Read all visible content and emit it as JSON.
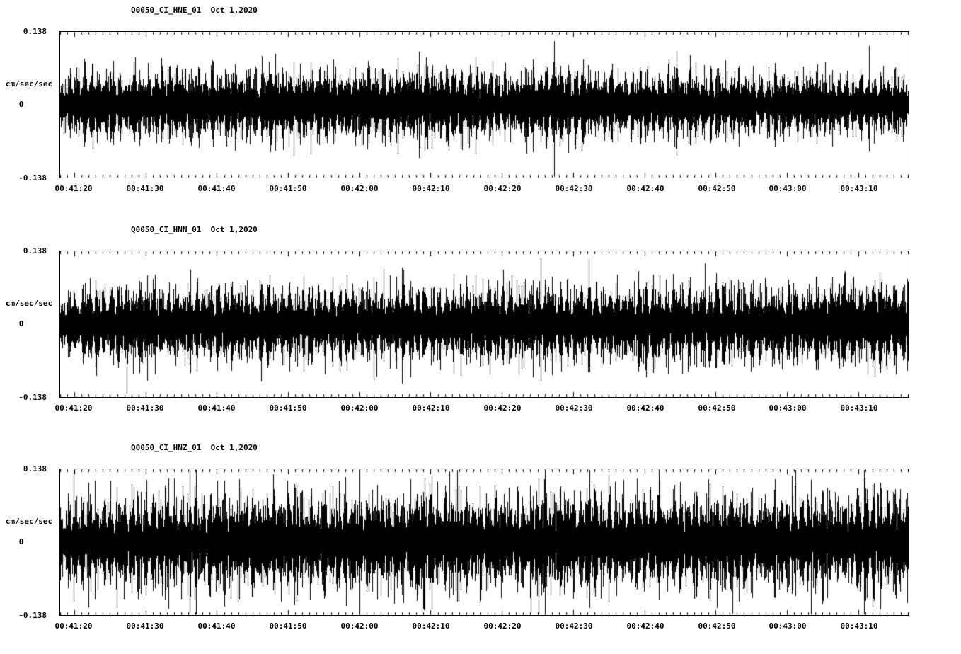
{
  "colors": {
    "background": "#ffffff",
    "trace": "#000000",
    "axis": "#000000"
  },
  "chart_data": [
    {
      "type": "line",
      "kind": "seismic-waveform",
      "title": "Q0050_CI_HNE_01  Oct 1,2020",
      "station": "Q0050",
      "channel": "CI_HNE_01",
      "date": "Oct 1,2020",
      "ylabel": "cm/sec/sec",
      "ylim": [
        -0.138,
        0.138
      ],
      "yticks": [
        {
          "value": 0.138,
          "label": "0.138"
        },
        {
          "value": 0,
          "label": "0"
        },
        {
          "value": -0.138,
          "label": "-0.138"
        }
      ],
      "x_start": "00:41:18",
      "x_end": "00:43:17",
      "x_major_ticks": [
        "00:41:20",
        "00:41:30",
        "00:41:40",
        "00:41:50",
        "00:42:00",
        "00:42:10",
        "00:42:20",
        "00:42:30",
        "00:42:40",
        "00:42:50",
        "00:43:00",
        "00:43:10"
      ],
      "x_minor_tick_sec": 1,
      "x_major_tick_sec": 10,
      "grid": false,
      "legend": false,
      "envelope": [
        0.048,
        0.062,
        0.06,
        0.063,
        0.058,
        0.06,
        0.064,
        0.061,
        0.058,
        0.062,
        0.066,
        0.06,
        0.057,
        0.06,
        0.062,
        0.058,
        0.055,
        0.058,
        0.06,
        0.056,
        0.052,
        0.055,
        0.053,
        0.05,
        0.055
      ],
      "stripe_frequency_hz": 1.0,
      "spike_probability": 0.012,
      "spike_scale": 0.5,
      "seed": 101
    },
    {
      "type": "line",
      "kind": "seismic-waveform",
      "title": "Q0050_CI_HNN_01  Oct 1,2020",
      "station": "Q0050",
      "channel": "CI_HNN_01",
      "date": "Oct 1,2020",
      "ylabel": "cm/sec/sec",
      "ylim": [
        -0.138,
        0.138
      ],
      "yticks": [
        {
          "value": 0.138,
          "label": "0.138"
        },
        {
          "value": 0,
          "label": "0"
        },
        {
          "value": -0.138,
          "label": "-0.138"
        }
      ],
      "x_start": "00:41:18",
      "x_end": "00:43:17",
      "x_major_ticks": [
        "00:41:20",
        "00:41:30",
        "00:41:40",
        "00:41:50",
        "00:42:00",
        "00:42:10",
        "00:42:20",
        "00:42:30",
        "00:42:40",
        "00:42:50",
        "00:43:00",
        "00:43:10"
      ],
      "x_minor_tick_sec": 1,
      "x_major_tick_sec": 10,
      "grid": false,
      "legend": false,
      "envelope": [
        0.045,
        0.065,
        0.068,
        0.064,
        0.066,
        0.07,
        0.066,
        0.062,
        0.068,
        0.072,
        0.066,
        0.064,
        0.068,
        0.066,
        0.07,
        0.064,
        0.068,
        0.072,
        0.066,
        0.068,
        0.064,
        0.068,
        0.072,
        0.068,
        0.072
      ],
      "stripe_frequency_hz": 1.0,
      "spike_probability": 0.015,
      "spike_scale": 0.5,
      "seed": 202
    },
    {
      "type": "line",
      "kind": "seismic-waveform",
      "title": "Q0050_CI_HNZ_01  Oct 1,2020",
      "station": "Q0050",
      "channel": "CI_HNZ_01",
      "date": "Oct 1,2020",
      "ylabel": "cm/sec/sec",
      "ylim": [
        -0.138,
        0.138
      ],
      "yticks": [
        {
          "value": 0.138,
          "label": "0.138"
        },
        {
          "value": 0,
          "label": "0"
        },
        {
          "value": -0.138,
          "label": "-0.138"
        }
      ],
      "x_start": "00:41:18",
      "x_end": "00:43:17",
      "x_major_ticks": [
        "00:41:20",
        "00:41:30",
        "00:41:40",
        "00:41:50",
        "00:42:00",
        "00:42:10",
        "00:42:20",
        "00:42:30",
        "00:42:40",
        "00:42:50",
        "00:43:00",
        "00:43:10"
      ],
      "x_minor_tick_sec": 1,
      "x_major_tick_sec": 10,
      "grid": false,
      "legend": false,
      "envelope": [
        0.058,
        0.08,
        0.078,
        0.082,
        0.076,
        0.08,
        0.084,
        0.08,
        0.078,
        0.082,
        0.086,
        0.08,
        0.082,
        0.078,
        0.084,
        0.08,
        0.078,
        0.082,
        0.08,
        0.084,
        0.08,
        0.082,
        0.078,
        0.082,
        0.084
      ],
      "stripe_frequency_hz": 1.0,
      "spike_probability": 0.035,
      "spike_scale": 0.8,
      "seed": 303
    }
  ]
}
